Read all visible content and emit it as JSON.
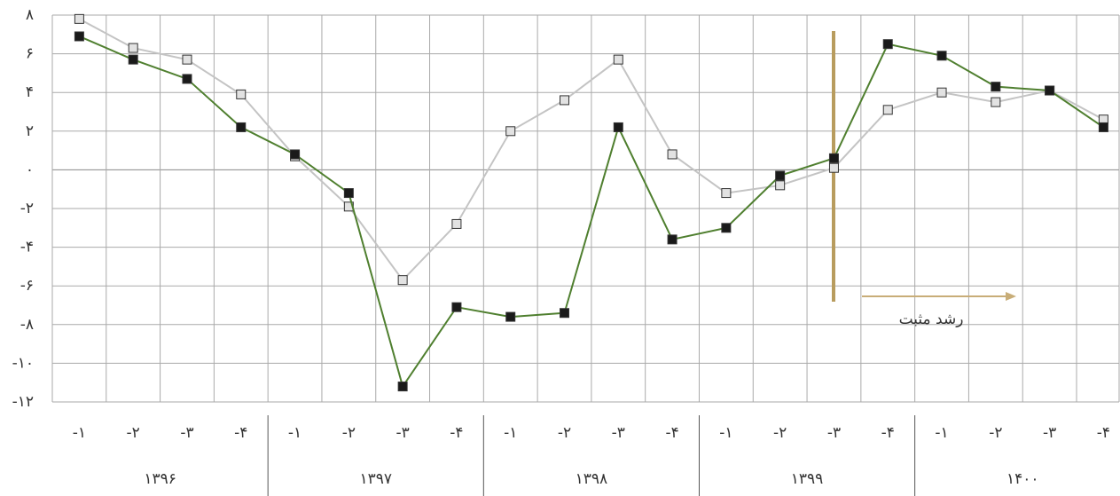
{
  "chart_data": {
    "type": "line",
    "categories": [
      "-۱",
      "-۲",
      "-۳",
      "-۴",
      "-۱",
      "-۲",
      "-۳",
      "-۴",
      "-۱",
      "-۲",
      "-۳",
      "-۴",
      "-۱",
      "-۲",
      "-۳",
      "-۴",
      "-۱",
      "-۲",
      "-۳",
      "-۴"
    ],
    "groups": [
      "۱۳۹۶",
      "۱۳۹۷",
      "۱۳۹۸",
      "۱۳۹۹",
      "۱۴۰۰"
    ],
    "series": [
      {
        "color": "#c4c4c4",
        "marker_color": "#e2e2e2",
        "values": [
          7.8,
          6.3,
          5.7,
          3.9,
          0.7,
          -1.9,
          -5.7,
          -2.8,
          2.0,
          3.6,
          5.7,
          0.8,
          -1.2,
          -0.8,
          0.1,
          3.1,
          4.0,
          3.5,
          4.1,
          2.6
        ]
      },
      {
        "color": "#4f7f2f",
        "marker_color": "#1a1a1a",
        "values": [
          6.9,
          5.7,
          4.7,
          2.2,
          0.8,
          -1.2,
          -11.2,
          -7.1,
          -7.6,
          -7.4,
          2.2,
          -3.6,
          -3.0,
          -0.3,
          0.6,
          6.5,
          5.9,
          4.3,
          4.1,
          2.2
        ]
      }
    ],
    "ylim": [
      -12,
      8
    ],
    "yticks": [
      {
        "value": 8,
        "label": "۸"
      },
      {
        "value": 6,
        "label": "۶"
      },
      {
        "value": 4,
        "label": "۴"
      },
      {
        "value": 2,
        "label": "۲"
      },
      {
        "value": 0,
        "label": "۰"
      },
      {
        "value": -2,
        "label": "-۲"
      },
      {
        "value": -4,
        "label": "-۴"
      },
      {
        "value": -6,
        "label": "-۶"
      },
      {
        "value": -8,
        "label": "-۸"
      },
      {
        "value": -10,
        "label": "-۱۰"
      },
      {
        "value": -12,
        "label": "-۱۲"
      }
    ],
    "grid": true,
    "annotation": "رشد مثبت"
  }
}
